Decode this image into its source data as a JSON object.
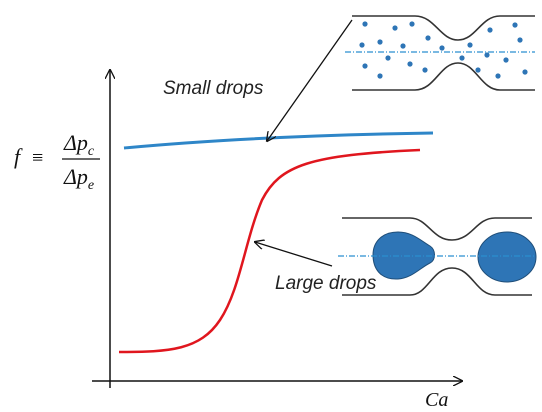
{
  "labels": {
    "small_drops": "Small drops",
    "large_drops": "Large drops",
    "x_axis": "Ca"
  },
  "formula": {
    "lhs": "f",
    "symbol": "≡",
    "numerator": "Δp",
    "numerator_sub": "c",
    "denominator": "Δp",
    "denominator_sub": "e"
  }
}
